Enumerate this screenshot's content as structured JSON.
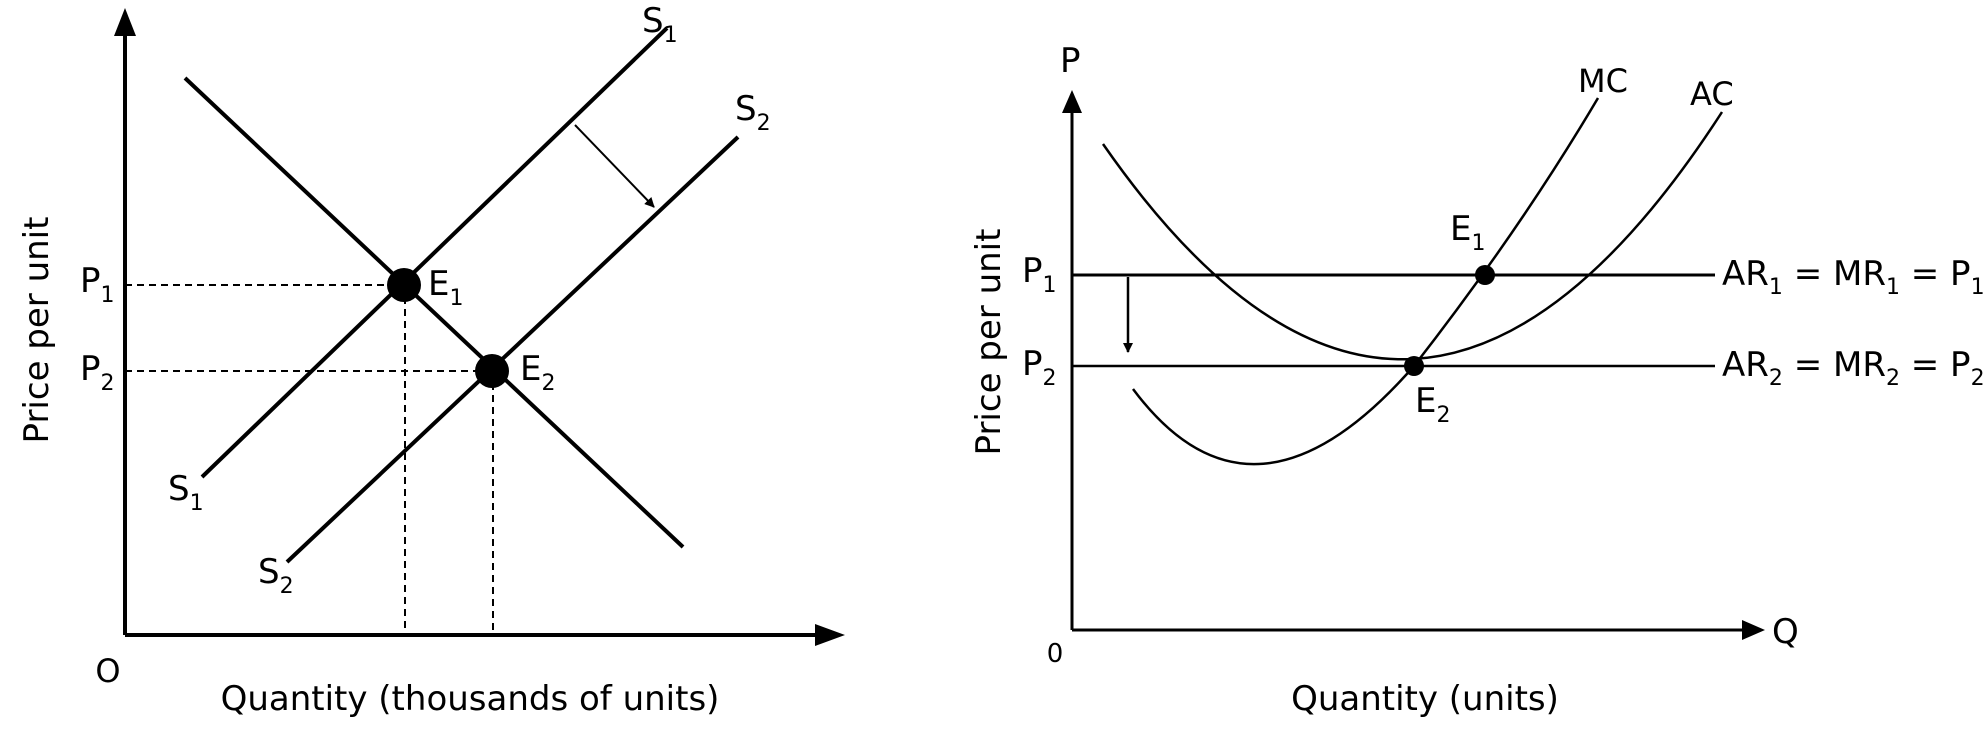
{
  "left_diagram": {
    "y_axis_label": "Price per unit",
    "x_axis_label": "Quantity (thousands of units)",
    "origin_label": "O",
    "price_labels": [
      {
        "main": "P",
        "sub": "1"
      },
      {
        "main": "P",
        "sub": "2"
      }
    ],
    "curve_labels": [
      {
        "main": "S",
        "sub": "1"
      },
      {
        "main": "S",
        "sub": "2"
      },
      {
        "main": "S",
        "sub": "1"
      },
      {
        "main": "S",
        "sub": "2"
      }
    ],
    "equilibrium_labels": [
      {
        "main": "E",
        "sub": "1"
      },
      {
        "main": "E",
        "sub": "2"
      }
    ]
  },
  "right_diagram": {
    "y_axis_label": "Price per unit",
    "x_axis_label": "Quantity (units)",
    "y_axis_title": "P",
    "x_axis_title": "Q",
    "origin_label": "0",
    "price_labels": [
      {
        "main": "P",
        "sub": "1"
      },
      {
        "main": "P",
        "sub": "2"
      }
    ],
    "curve_labels": {
      "mc": "MC",
      "ac": "AC"
    },
    "equilibrium_labels": [
      {
        "main": "E",
        "sub": "1"
      },
      {
        "main": "E",
        "sub": "2"
      }
    ],
    "revenue_lines": [
      {
        "a": "AR",
        "a_sub": "1",
        "b": " = MR",
        "b_sub": "1",
        "c": " = P",
        "c_sub": "1"
      },
      {
        "a": "AR",
        "a_sub": "2",
        "b": " = MR",
        "b_sub": "2",
        "c": " = P",
        "c_sub": "2"
      }
    ]
  }
}
